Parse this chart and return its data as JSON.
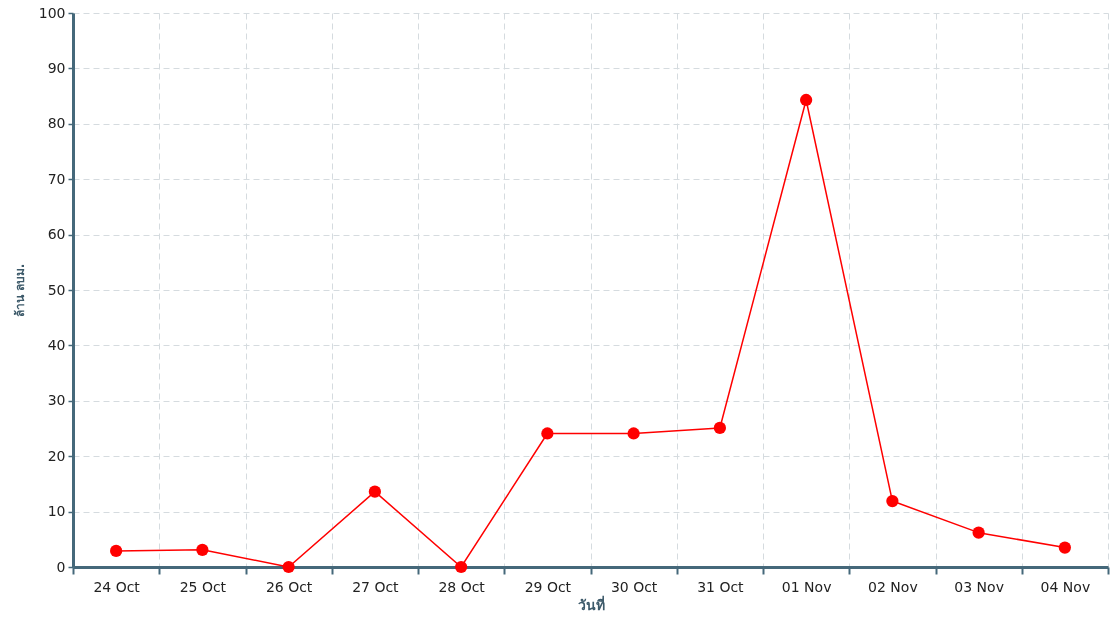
{
  "chart_data": {
    "type": "line",
    "xlabel": "วันที่",
    "ylabel": "ล้าน ลบม.",
    "categories": [
      "24 Oct",
      "25 Oct",
      "26 Oct",
      "27 Oct",
      "28 Oct",
      "29 Oct",
      "30 Oct",
      "31 Oct",
      "01 Nov",
      "02 Nov",
      "03 Nov",
      "04 Nov"
    ],
    "series": [
      {
        "color": "#ff0000",
        "values": [
          2.9,
          3.1,
          0,
          13.6,
          0,
          24.1,
          24.1,
          25.1,
          84.3,
          11.9,
          6.2,
          3.5
        ]
      }
    ],
    "ylim": [
      0,
      100
    ],
    "yticks": [
      0,
      10,
      20,
      30,
      40,
      50,
      60,
      70,
      80,
      90,
      100
    ],
    "grid": true,
    "marker": "circle",
    "line_style": "solid"
  }
}
